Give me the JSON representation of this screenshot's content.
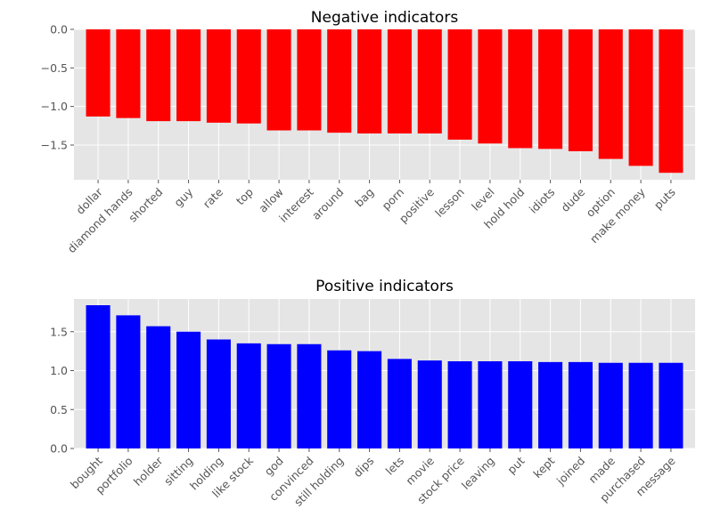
{
  "chart_data": [
    {
      "type": "bar",
      "title": "Negative indicators",
      "xlabel": "",
      "ylabel": "",
      "color": "#ff0000",
      "ylim": [
        -1.95,
        0.0
      ],
      "yticks": [
        0.0,
        -0.5,
        -1.0,
        -1.5
      ],
      "ytick_labels": [
        "0.0",
        "−0.5",
        "−1.0",
        "−1.5"
      ],
      "grid": true,
      "categories": [
        "dollar",
        "diamond hands",
        "shorted",
        "guy",
        "rate",
        "top",
        "allow",
        "interest",
        "around",
        "bag",
        "porn",
        "positive",
        "lesson",
        "level",
        "hold hold",
        "idiots",
        "dude",
        "option",
        "make money",
        "puts"
      ],
      "values": [
        -1.13,
        -1.15,
        -1.19,
        -1.19,
        -1.21,
        -1.22,
        -1.31,
        -1.31,
        -1.34,
        -1.35,
        -1.35,
        -1.35,
        -1.43,
        -1.48,
        -1.54,
        -1.55,
        -1.58,
        -1.68,
        -1.77,
        -1.86
      ]
    },
    {
      "type": "bar",
      "title": "Positive indicators",
      "xlabel": "",
      "ylabel": "",
      "color": "#0000ff",
      "ylim": [
        0.0,
        1.92
      ],
      "yticks": [
        0.0,
        0.5,
        1.0,
        1.5
      ],
      "ytick_labels": [
        "0.0",
        "0.5",
        "1.0",
        "1.5"
      ],
      "grid": true,
      "categories": [
        "bought",
        "portfolio",
        "holder",
        "sitting",
        "holding",
        "like stock",
        "god",
        "convinced",
        "still holding",
        "dips",
        "lets",
        "movie",
        "stock price",
        "leaving",
        "put",
        "kept",
        "joined",
        "made",
        "purchased",
        "message"
      ],
      "values": [
        1.84,
        1.71,
        1.57,
        1.5,
        1.4,
        1.35,
        1.34,
        1.34,
        1.26,
        1.25,
        1.15,
        1.13,
        1.12,
        1.12,
        1.12,
        1.11,
        1.11,
        1.1,
        1.1,
        1.1
      ]
    }
  ]
}
